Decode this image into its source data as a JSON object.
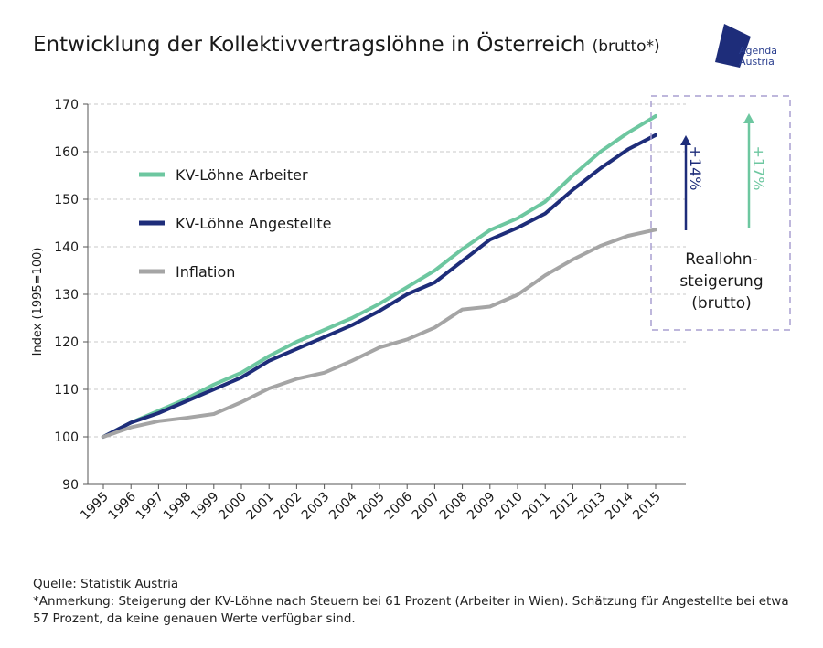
{
  "header": {
    "title": "Entwicklung der Kollektivvertragslöhne in Österreich",
    "subtitle": "(brutto*)"
  },
  "logo": {
    "line1": "Agenda",
    "line2": "Austria"
  },
  "chart_data": {
    "type": "line",
    "title": "Entwicklung der Kollektivvertragslöhne in Österreich (brutto*)",
    "xlabel": "",
    "ylabel": "Index (1995=100)",
    "x": [
      "1995",
      "1996",
      "1997",
      "1998",
      "1999",
      "2000",
      "2001",
      "2002",
      "2003",
      "2004",
      "2005",
      "2006",
      "2007",
      "2008",
      "2009",
      "2010",
      "2011",
      "2012",
      "2013",
      "2014",
      "2015"
    ],
    "ylim": [
      90,
      170
    ],
    "yticks": [
      90,
      100,
      110,
      120,
      130,
      140,
      150,
      160,
      170
    ],
    "grid": true,
    "legend_position": "top-left",
    "series": [
      {
        "name": "KV-Löhne Arbeiter",
        "color": "#6dc7a0",
        "values": [
          100,
          103,
          105.5,
          108,
          111,
          113.5,
          117,
          120,
          122.5,
          125,
          128,
          131.5,
          135,
          139.5,
          143.5,
          146,
          149.5,
          155,
          160,
          164,
          167.5
        ]
      },
      {
        "name": "KV-Löhne Angestellte",
        "color": "#1e2d7a",
        "values": [
          100,
          103,
          105,
          107.5,
          110,
          112.5,
          116,
          118.5,
          121,
          123.5,
          126.5,
          130,
          132.5,
          137,
          141.5,
          144,
          147,
          152,
          156.5,
          160.5,
          163.5
        ]
      },
      {
        "name": "Inflation",
        "color": "#a5a5a5",
        "values": [
          100,
          102,
          103.3,
          104,
          104.8,
          107.3,
          110.2,
          112.2,
          113.5,
          116,
          118.8,
          120.5,
          123,
          126.8,
          127.4,
          129.9,
          134,
          137.3,
          140.2,
          142.3,
          143.6
        ]
      }
    ],
    "annotations": [
      {
        "text": "+14%",
        "color": "#1e2d7a"
      },
      {
        "text": "+17%",
        "color": "#6dc7a0"
      },
      {
        "text": "Reallohn-",
        "color": "#1a1a1a"
      },
      {
        "text": "steigerung",
        "color": "#1a1a1a"
      },
      {
        "text": "(brutto)",
        "color": "#1a1a1a"
      }
    ]
  },
  "footer": {
    "source": "Quelle: Statistik Austria",
    "note": "*Anmerkung: Steigerung der KV-Löhne nach Steuern bei 61 Prozent (Arbeiter in Wien). Schätzung für Angestellte bei etwa 57 Prozent, da keine genauen Werte verfügbar sind."
  }
}
